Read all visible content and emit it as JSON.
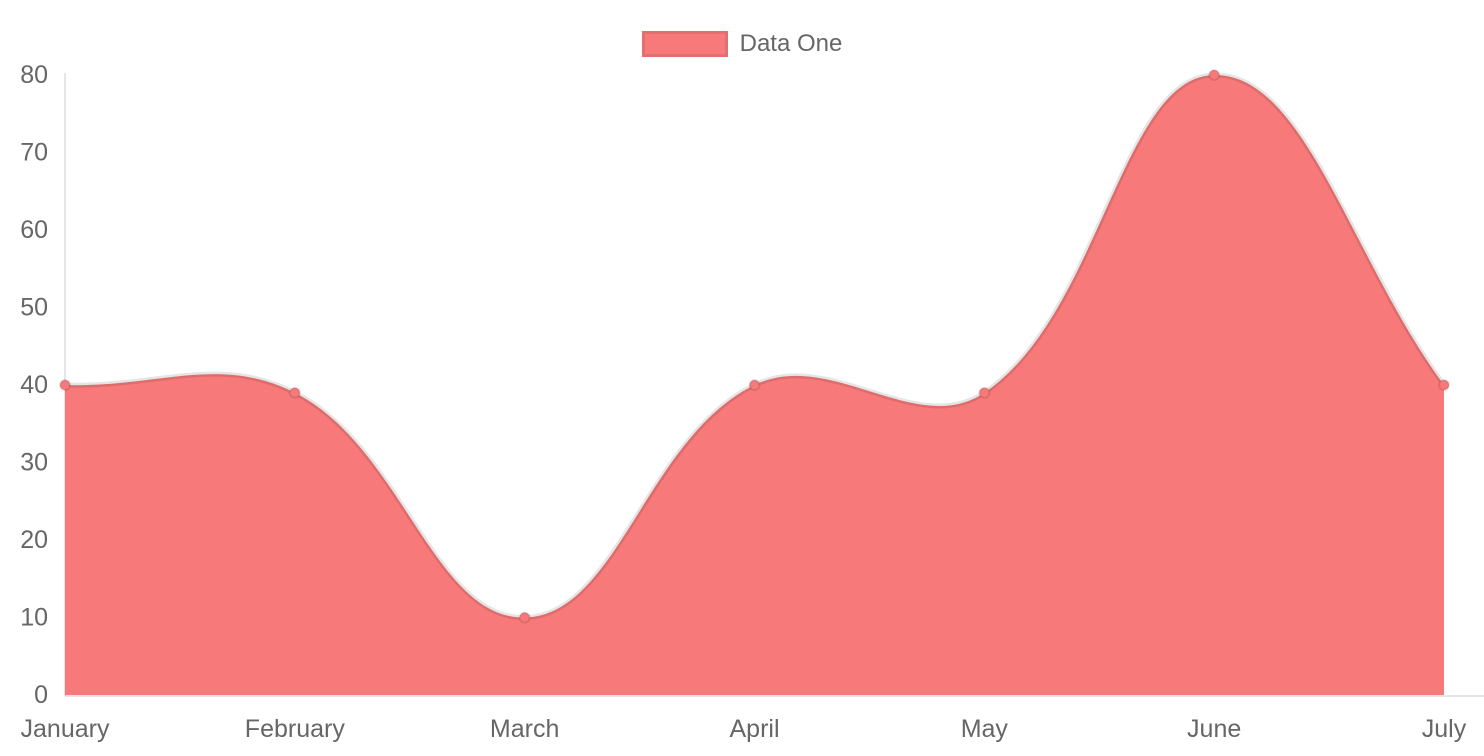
{
  "legend": {
    "label": "Data One",
    "swatch_color": "#f87979"
  },
  "chart_data": {
    "type": "area",
    "title": "",
    "xlabel": "",
    "ylabel": "",
    "categories": [
      "January",
      "February",
      "March",
      "April",
      "May",
      "June",
      "July"
    ],
    "series": [
      {
        "name": "Data One",
        "values": [
          40,
          39,
          10,
          40,
          39,
          80,
          40
        ]
      }
    ],
    "ylim": [
      0,
      80
    ],
    "y_ticks": [
      0,
      10,
      20,
      30,
      40,
      50,
      60,
      70,
      80
    ],
    "grid": false,
    "legend_position": "top-center",
    "line_tension": 0.4,
    "colors": {
      "fill": "#f87979",
      "line": "rgba(0,0,0,0.1)",
      "point_fill": "#f87979",
      "point_border": "rgba(0,0,0,0.1)",
      "axis": "rgba(0,0,0,0.1)",
      "tick_text": "#666666"
    }
  }
}
